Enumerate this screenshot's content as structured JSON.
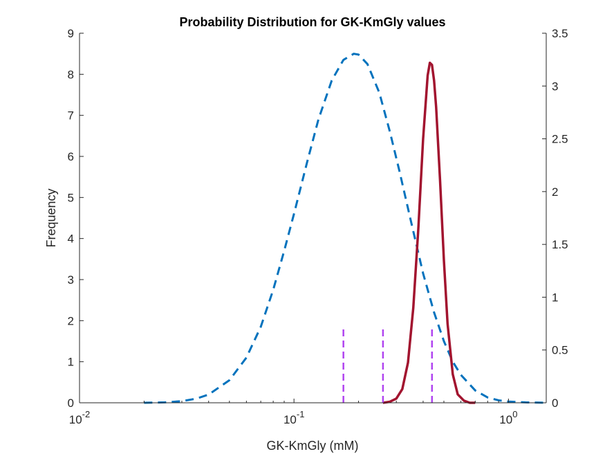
{
  "chart_data": {
    "type": "line",
    "title": "Probability Distribution for GK-KmGly values",
    "xlabel": "GK-KmGly (mM)",
    "ylabel": "Frequency",
    "x_scale": "log",
    "xlim": [
      0.01,
      1.5
    ],
    "ylim": [
      0,
      9
    ],
    "y2lim": [
      0,
      3.5
    ],
    "grid": false,
    "legend": "none",
    "x_ticks": [
      {
        "value": 0.01,
        "base": "10",
        "exp": "-2"
      },
      {
        "value": 0.1,
        "base": "10",
        "exp": "-1"
      },
      {
        "value": 1,
        "base": "10",
        "exp": "0"
      }
    ],
    "y_ticks": [
      "0",
      "1",
      "2",
      "3",
      "4",
      "5",
      "6",
      "7",
      "8",
      "9"
    ],
    "y2_ticks": [
      "0",
      "0.5",
      "1",
      "1.5",
      "2",
      "2.5",
      "3",
      "3.5"
    ],
    "series": [
      {
        "axis": "left",
        "style": "dashed",
        "color": "#0072BD",
        "x": [
          0.02,
          0.025,
          0.03,
          0.035,
          0.04,
          0.05,
          0.06,
          0.07,
          0.08,
          0.09,
          0.1,
          0.115,
          0.13,
          0.15,
          0.17,
          0.19,
          0.2,
          0.22,
          0.25,
          0.28,
          0.31,
          0.35,
          0.4,
          0.45,
          0.5,
          0.55,
          0.6,
          0.7,
          0.8,
          0.9,
          1.0,
          1.2,
          1.5
        ],
        "y": [
          0.0,
          0.01,
          0.04,
          0.1,
          0.2,
          0.55,
          1.1,
          1.85,
          2.75,
          3.7,
          4.6,
          5.85,
          6.9,
          7.85,
          8.35,
          8.5,
          8.48,
          8.25,
          7.55,
          6.6,
          5.65,
          4.45,
          3.15,
          2.2,
          1.5,
          1.0,
          0.68,
          0.3,
          0.13,
          0.06,
          0.03,
          0.01,
          0.0
        ]
      },
      {
        "axis": "right",
        "style": "solid",
        "color": "#A2142F",
        "x": [
          0.26,
          0.28,
          0.3,
          0.32,
          0.34,
          0.36,
          0.38,
          0.4,
          0.42,
          0.43,
          0.44,
          0.45,
          0.46,
          0.48,
          0.5,
          0.52,
          0.55,
          0.58,
          0.62,
          0.66,
          0.7
        ],
        "y": [
          0.0,
          0.01,
          0.04,
          0.13,
          0.38,
          0.9,
          1.65,
          2.5,
          3.1,
          3.22,
          3.2,
          3.05,
          2.8,
          2.1,
          1.35,
          0.75,
          0.27,
          0.08,
          0.02,
          0.0,
          0.0
        ]
      },
      {
        "axis": "right",
        "style": "dashed",
        "color": "#B044F0",
        "type": "vlines",
        "x": [
          0.17,
          0.26,
          0.44
        ],
        "height": 0.72
      }
    ]
  }
}
